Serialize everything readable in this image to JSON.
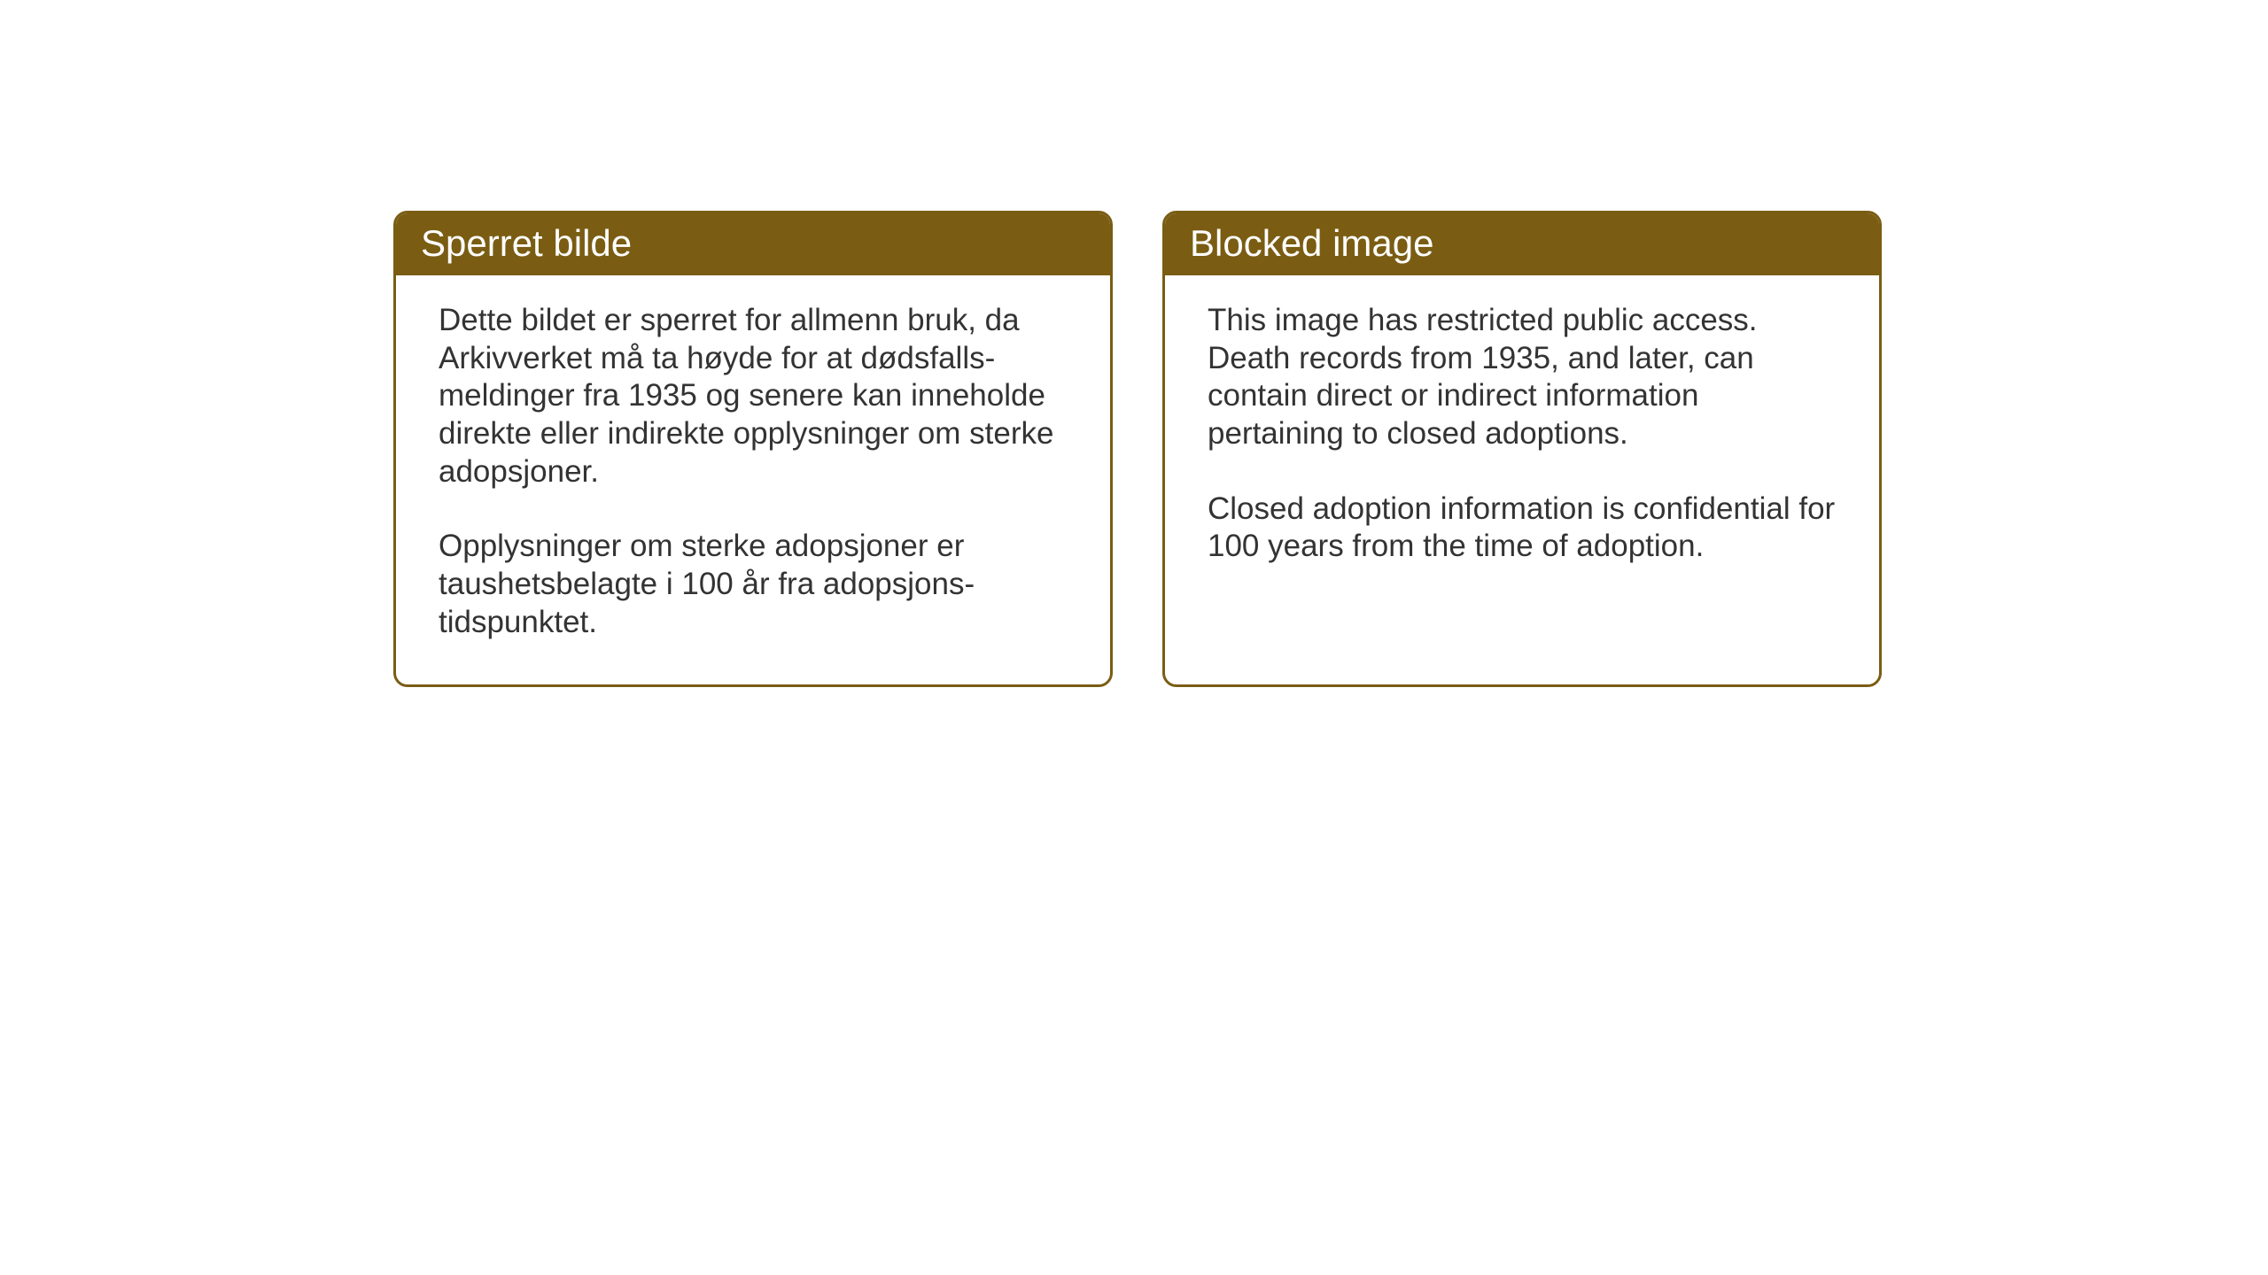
{
  "layout": {
    "background_color": "#ffffff",
    "card_border_color": "#7a5d13",
    "card_header_bg": "#7a5d13",
    "card_header_text_color": "#ffffff",
    "card_body_text_color": "#333333",
    "card_border_radius": 16,
    "card_border_width": 3,
    "header_fontsize": 42,
    "body_fontsize": 35
  },
  "norwegian": {
    "title": "Sperret bilde",
    "paragraph1": "Dette bildet er sperret for allmenn bruk, da Arkivverket må ta høyde for at dødsfalls-meldinger fra 1935 og senere kan inneholde direkte eller indirekte opplysninger om sterke adopsjoner.",
    "paragraph2": "Opplysninger om sterke adopsjoner er taushetsbelagte i 100 år fra adopsjons-tidspunktet."
  },
  "english": {
    "title": "Blocked image",
    "paragraph1": "This image has restricted public access. Death records from 1935, and later, can contain direct or indirect information pertaining to closed adoptions.",
    "paragraph2": "Closed adoption information is confidential for 100 years from the time of adoption."
  }
}
